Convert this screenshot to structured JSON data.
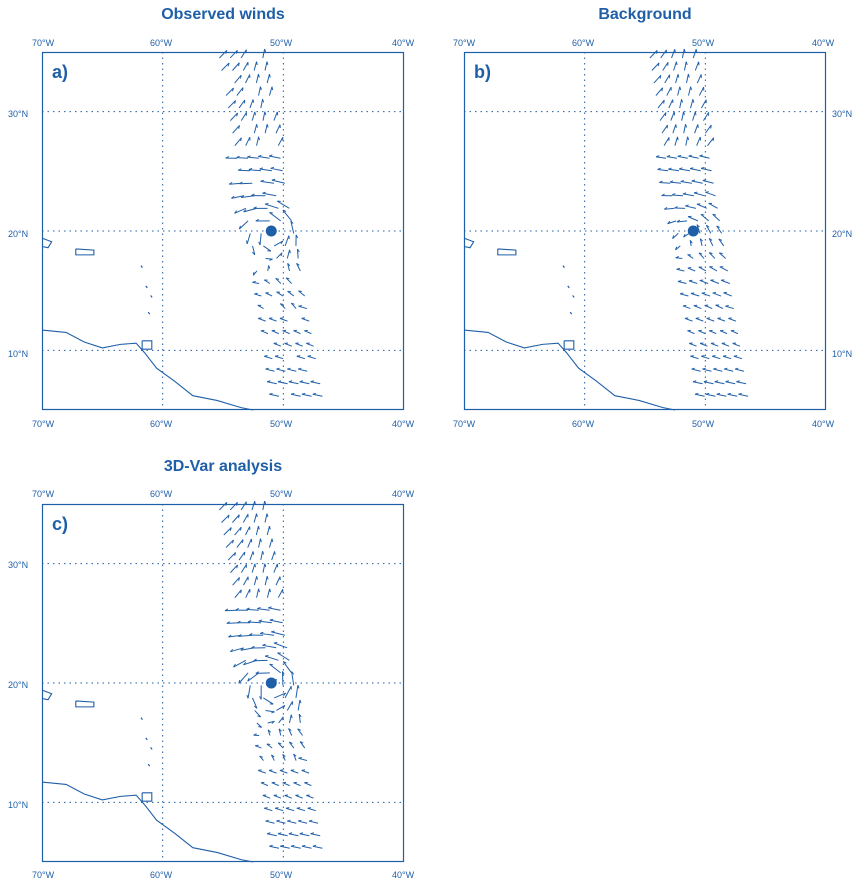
{
  "colors": {
    "ink": "#1f5fa8"
  },
  "panels": [
    {
      "id": "a",
      "title": "Observed winds",
      "label": "a)",
      "lon_ticks": [
        "70°W",
        "60°W",
        "50°W",
        "40°W"
      ],
      "lat_ticks": [
        "30°N",
        "20°N",
        "10°N"
      ],
      "storm_center": {
        "lon": -51,
        "lat": 20
      }
    },
    {
      "id": "b",
      "title": "Background",
      "label": "b)",
      "lon_ticks": [
        "70°W",
        "60°W",
        "50°W",
        "40°W"
      ],
      "lat_ticks": [
        "30°N",
        "20°N",
        "10°N"
      ],
      "storm_center": {
        "lon": -51,
        "lat": 20
      }
    },
    {
      "id": "c",
      "title": "3D-Var analysis",
      "label": "c)",
      "lon_ticks": [
        "70°W",
        "60°W",
        "50°W",
        "40°W"
      ],
      "lat_ticks": [
        "30°N",
        "20°N",
        "10°N"
      ],
      "storm_center": {
        "lon": -51,
        "lat": 20
      }
    }
  ],
  "extent": {
    "lon": [
      -70,
      -40
    ],
    "lat": [
      5,
      35
    ]
  }
}
